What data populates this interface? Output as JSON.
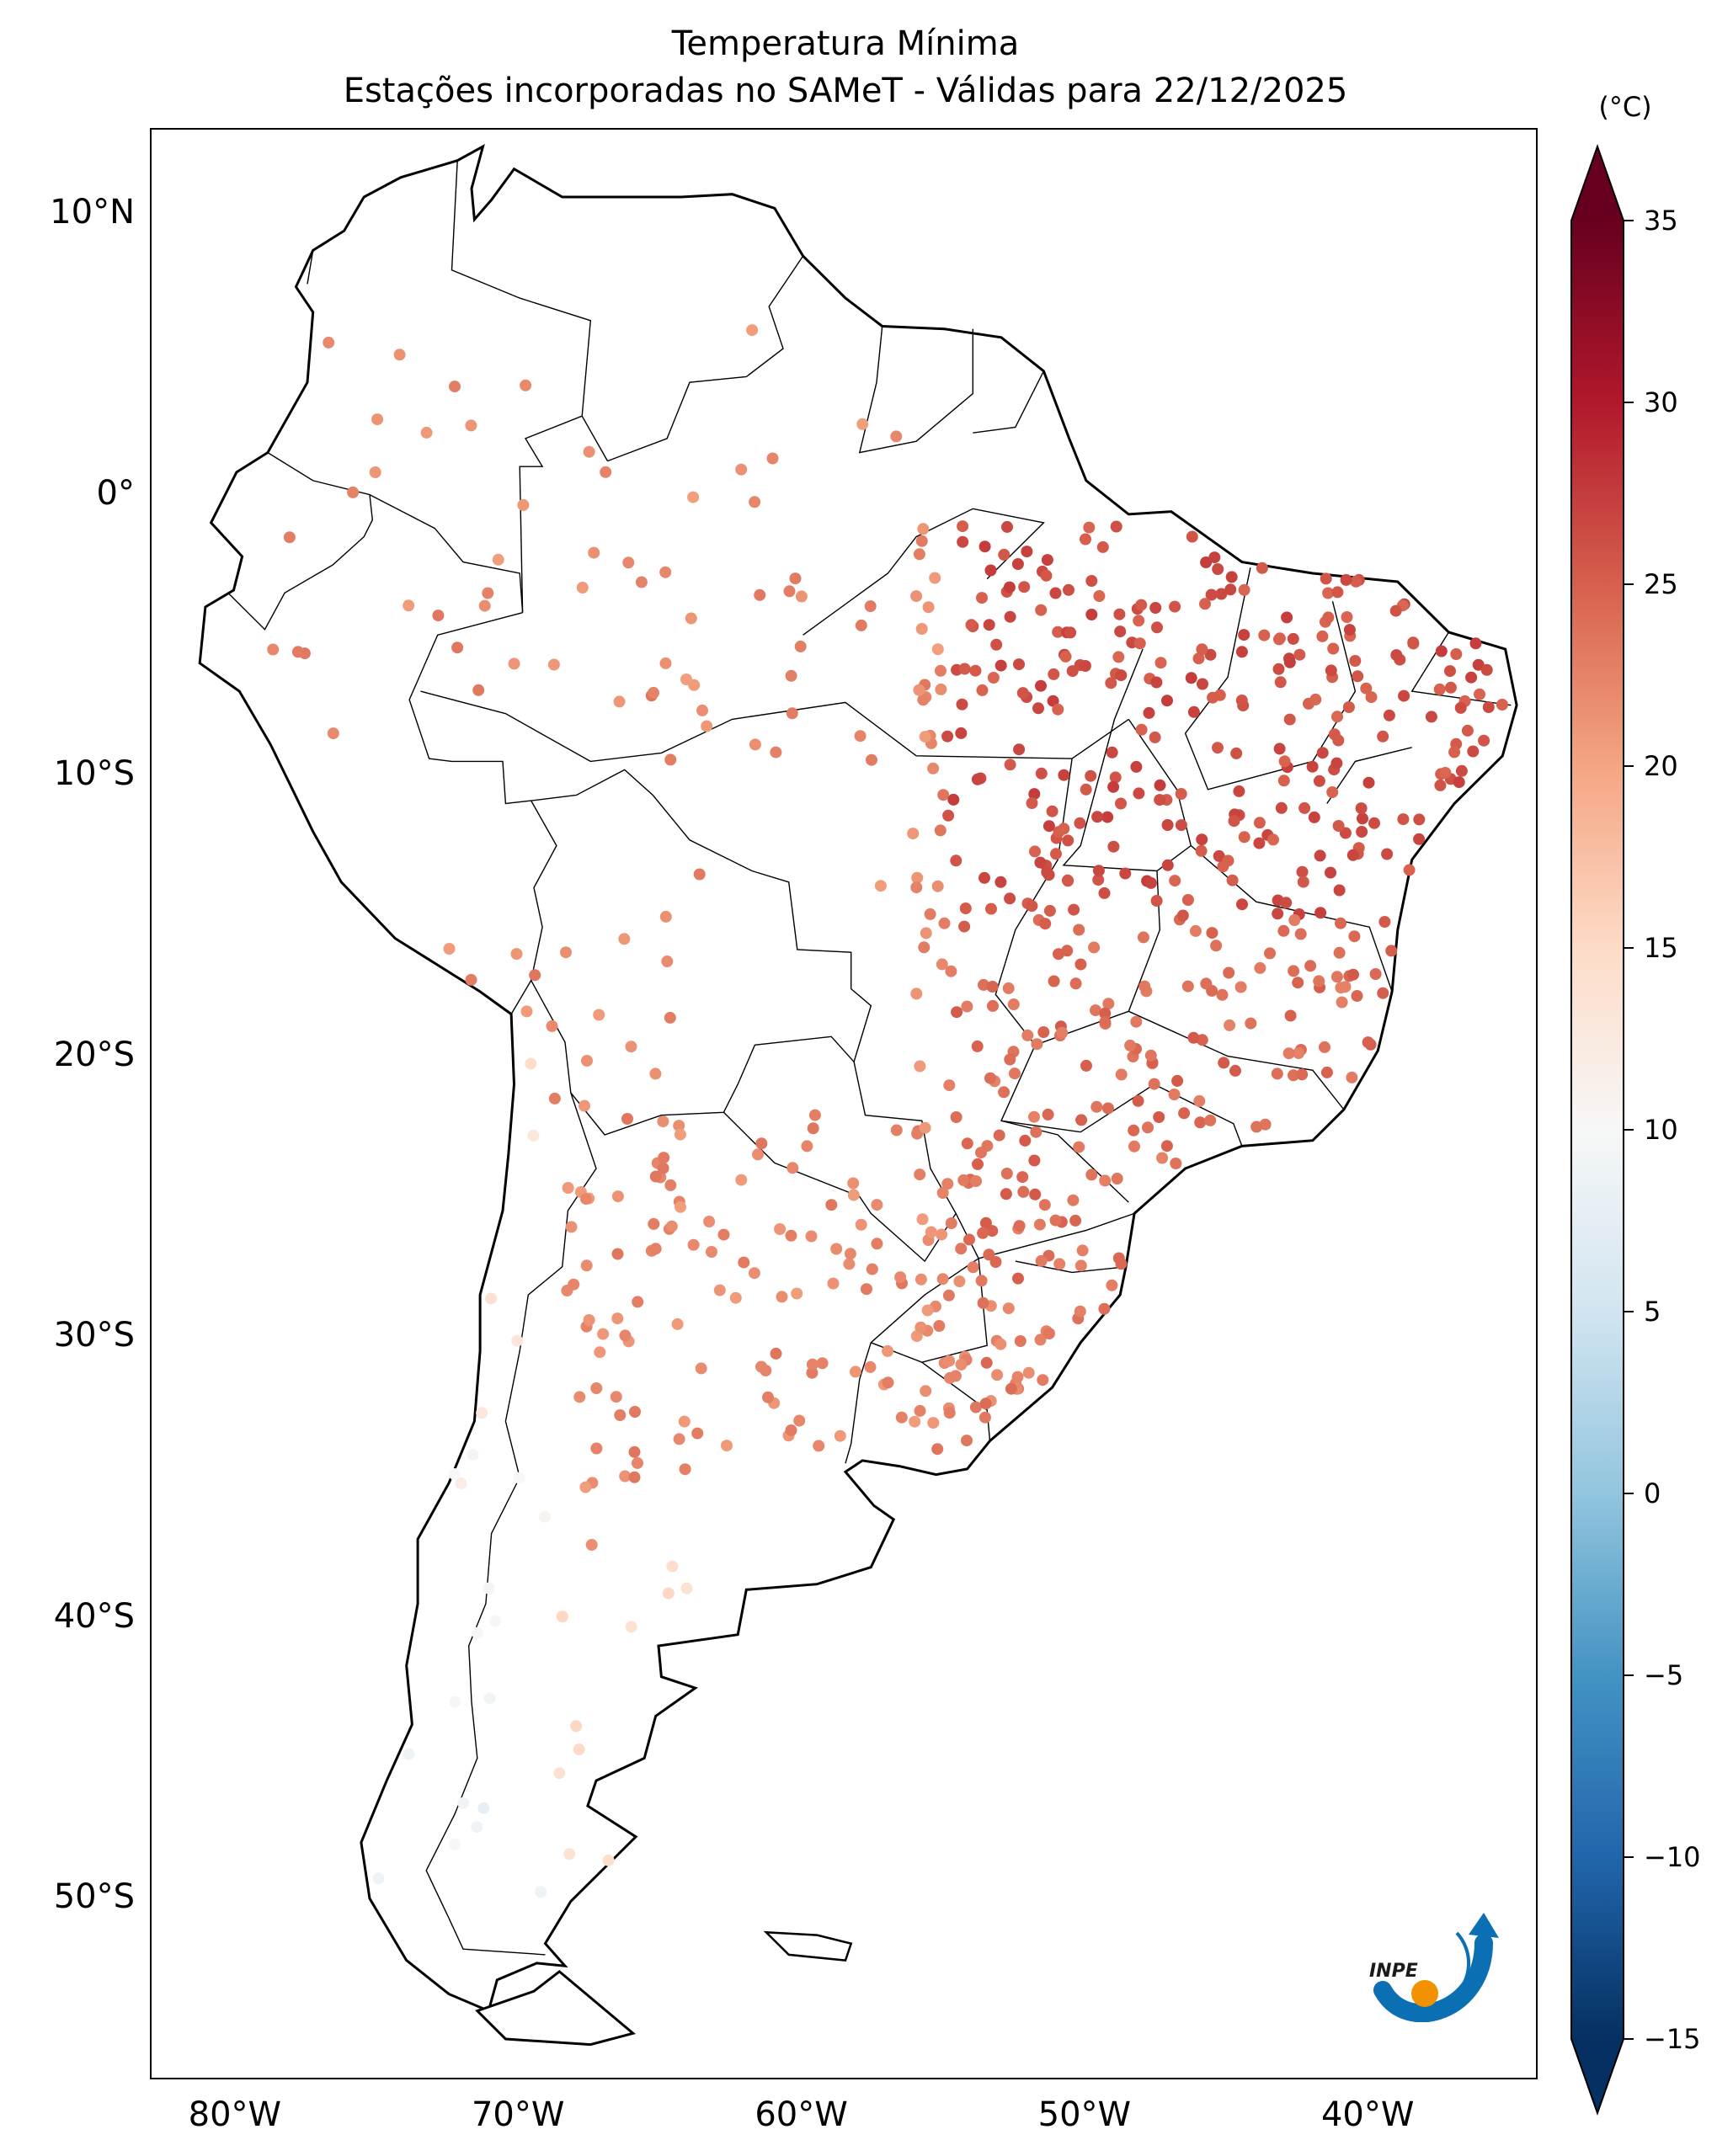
{
  "title": {
    "line1": "Temperatura Mínima",
    "line2": "Estações incorporadas no SAMeT - Válidas para 22/12/2025"
  },
  "map": {
    "extent": {
      "lon_min": -83.0,
      "lon_max": -34.0,
      "lat_min": -56.5,
      "lat_max": 13.0
    },
    "lat_ticks": [
      {
        "value": 10,
        "label": "10°N"
      },
      {
        "value": 0,
        "label": "0°"
      },
      {
        "value": -10,
        "label": "10°S"
      },
      {
        "value": -20,
        "label": "20°S"
      },
      {
        "value": -30,
        "label": "30°S"
      },
      {
        "value": -40,
        "label": "40°S"
      },
      {
        "value": -50,
        "label": "50°S"
      }
    ],
    "lon_ticks": [
      {
        "value": -80,
        "label": "80°W"
      },
      {
        "value": -70,
        "label": "70°W"
      },
      {
        "value": -60,
        "label": "60°W"
      },
      {
        "value": -50,
        "label": "50°W"
      },
      {
        "value": -40,
        "label": "40°W"
      }
    ],
    "coastline_color": "#000000",
    "border_color": "#000000"
  },
  "colorbar": {
    "unit": "(°C)",
    "min": -15,
    "max": 35,
    "extend": "both",
    "colormap": "RdBu_r",
    "ticks": [
      {
        "value": 35,
        "label": "35"
      },
      {
        "value": 30,
        "label": "30"
      },
      {
        "value": 25,
        "label": "25"
      },
      {
        "value": 20,
        "label": "20"
      },
      {
        "value": 15,
        "label": "15"
      },
      {
        "value": 10,
        "label": "10"
      },
      {
        "value": 5,
        "label": "5"
      },
      {
        "value": 0,
        "label": "0"
      },
      {
        "value": -5,
        "label": "−5"
      },
      {
        "value": -10,
        "label": "−10"
      },
      {
        "value": -15,
        "label": "−15"
      }
    ],
    "colors": [
      "#053061",
      "#2166ac",
      "#4393c3",
      "#92c5de",
      "#d1e5f0",
      "#f7f7f7",
      "#fddbc7",
      "#f4a582",
      "#d6604d",
      "#b2182b",
      "#67001f"
    ]
  },
  "logo": {
    "text": "INPE"
  }
}
